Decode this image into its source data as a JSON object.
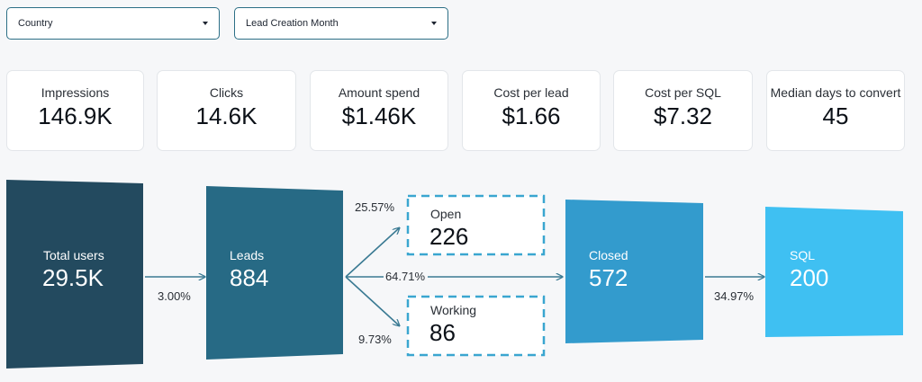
{
  "filters": {
    "country": "Country",
    "lead_month": "Lead Creation Month"
  },
  "kpis": [
    {
      "label": "Impressions",
      "value": "146.9K"
    },
    {
      "label": "Clicks",
      "value": "14.6K"
    },
    {
      "label": "Amount spend",
      "value": "$1.46K"
    },
    {
      "label": "Cost per lead",
      "value": "$1.66"
    },
    {
      "label": "Cost per SQL",
      "value": "$7.32"
    },
    {
      "label": "Median days to convert",
      "value": "45"
    }
  ],
  "funnel": {
    "total_users": {
      "label": "Total users",
      "value": "29.5K"
    },
    "leads": {
      "label": "Leads",
      "value": "884"
    },
    "open": {
      "label": "Open",
      "value": "226"
    },
    "working": {
      "label": "Working",
      "value": "86"
    },
    "closed": {
      "label": "Closed",
      "value": "572"
    },
    "sql": {
      "label": "SQL",
      "value": "200"
    },
    "rates": {
      "users_to_leads": "3.00%",
      "to_open": "25.57%",
      "to_closed": "64.71%",
      "to_working": "9.73%",
      "closed_to_sql": "34.97%"
    },
    "colors": {
      "total_users": "#234a5f",
      "leads": "#276a85",
      "closed": "#339bcd",
      "sql": "#3fc0f2",
      "arrow": "#3a7a93",
      "dashed": "#3aa6d0"
    }
  }
}
